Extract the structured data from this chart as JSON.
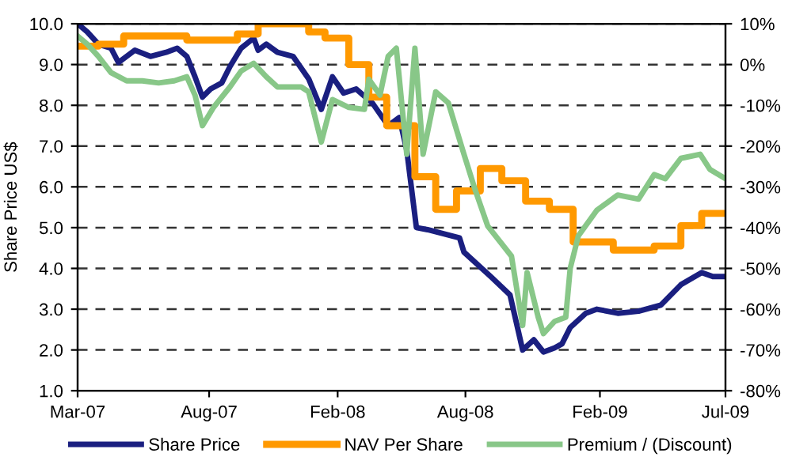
{
  "chart_data": {
    "type": "line",
    "ylabel": "Share Price US$",
    "xlim": [
      "2007-03-01",
      "2009-07-20"
    ],
    "xticks": [
      {
        "value": "2007-03-01",
        "label": "Mar-07"
      },
      {
        "value": "2007-08-25",
        "label": "Aug-07"
      },
      {
        "value": "2008-02-14",
        "label": "Feb-08"
      },
      {
        "value": "2008-08-04",
        "label": "Aug-08"
      },
      {
        "value": "2009-02-01",
        "label": "Feb-09"
      },
      {
        "value": "2009-07-20",
        "label": "Jul-09"
      }
    ],
    "ylim": [
      1,
      10
    ],
    "yticks": [
      {
        "value": 1,
        "label": "1.0"
      },
      {
        "value": 2,
        "label": "2.0"
      },
      {
        "value": 3,
        "label": "3.0"
      },
      {
        "value": 4,
        "label": "4.0"
      },
      {
        "value": 5,
        "label": "5.0"
      },
      {
        "value": 6,
        "label": "6.0"
      },
      {
        "value": 7,
        "label": "7.0"
      },
      {
        "value": 8,
        "label": "8.0"
      },
      {
        "value": 9,
        "label": "9.0"
      },
      {
        "value": 10,
        "label": "10.0"
      }
    ],
    "y2lim": [
      -80,
      10
    ],
    "y2ticks": [
      {
        "value": -80,
        "label": "-80%"
      },
      {
        "value": -70,
        "label": "-70%"
      },
      {
        "value": -60,
        "label": "-60%"
      },
      {
        "value": -50,
        "label": "-50%"
      },
      {
        "value": -40,
        "label": "-40%"
      },
      {
        "value": -30,
        "label": "-30%"
      },
      {
        "value": -20,
        "label": "-20%"
      },
      {
        "value": -10,
        "label": "-10%"
      },
      {
        "value": 0,
        "label": "0%"
      },
      {
        "value": 10,
        "label": "10%"
      }
    ],
    "grid": "y",
    "legend": "bottom",
    "line_style": "solid",
    "series": [
      {
        "name": "Share Price",
        "color": "#1a1f80",
        "x": [
          "2007-03-01",
          "2007-03-14",
          "2007-03-29",
          "2007-04-15",
          "2007-04-25",
          "2007-05-17",
          "2007-06-07",
          "2007-06-28",
          "2007-07-13",
          "2007-07-26",
          "2007-08-06",
          "2007-08-16",
          "2007-08-27",
          "2007-09-11",
          "2007-09-22",
          "2007-10-07",
          "2007-10-24",
          "2007-10-30",
          "2007-11-10",
          "2007-11-25",
          "2007-12-16",
          "2008-01-06",
          "2008-01-23",
          "2008-02-07",
          "2008-02-22",
          "2008-03-10",
          "2008-04-01",
          "2008-04-22",
          "2008-05-07",
          "2008-05-17",
          "2008-05-30",
          "2008-06-14",
          "2008-07-27",
          "2008-08-02",
          "2008-09-07",
          "2008-10-03",
          "2008-10-20",
          "2008-11-04",
          "2008-11-17",
          "2008-12-02",
          "2008-12-12",
          "2008-12-23",
          "2009-01-13",
          "2009-01-28",
          "2009-02-25",
          "2009-03-25",
          "2009-04-24",
          "2009-05-21",
          "2009-06-18",
          "2009-07-03",
          "2009-07-20"
        ],
        "values": [
          10.0,
          9.8,
          9.5,
          9.4,
          9.05,
          9.35,
          9.2,
          9.3,
          9.4,
          9.2,
          8.7,
          8.2,
          8.4,
          8.55,
          8.95,
          9.4,
          9.65,
          9.35,
          9.5,
          9.3,
          9.2,
          8.65,
          7.9,
          8.7,
          8.3,
          8.4,
          8.05,
          7.5,
          7.7,
          6.9,
          5.0,
          4.95,
          4.75,
          4.4,
          3.8,
          3.35,
          2.0,
          2.25,
          1.95,
          2.05,
          2.15,
          2.55,
          2.9,
          3.0,
          2.9,
          2.95,
          3.1,
          3.6,
          3.9,
          3.8,
          3.8
        ]
      },
      {
        "name": "NAV Per Share",
        "color": "#ff9900",
        "type": "step",
        "x": [
          "2007-03-01",
          "2007-03-29",
          "2007-05-02",
          "2007-07-26",
          "2007-08-31",
          "2007-10-02",
          "2007-10-30",
          "2008-01-06",
          "2008-01-28",
          "2008-02-29",
          "2008-03-27",
          "2008-04-20",
          "2008-05-28",
          "2008-06-25",
          "2008-07-23",
          "2008-08-24",
          "2008-09-22",
          "2008-10-24",
          "2008-11-25",
          "2008-12-27",
          "2009-02-19",
          "2009-03-18",
          "2009-04-15",
          "2009-05-21",
          "2009-06-18",
          "2009-07-20"
        ],
        "values": [
          9.45,
          9.5,
          9.7,
          9.6,
          9.6,
          9.75,
          10.0,
          9.8,
          9.65,
          9.0,
          8.2,
          7.5,
          6.25,
          5.45,
          5.9,
          6.45,
          6.15,
          5.65,
          5.45,
          4.65,
          4.45,
          4.45,
          4.55,
          5.05,
          5.35,
          5.35
        ]
      },
      {
        "name": "Premium / (Discount)",
        "color": "#88c788",
        "axis": "y2",
        "x": [
          "2007-03-01",
          "2007-03-14",
          "2007-03-29",
          "2007-04-15",
          "2007-05-06",
          "2007-05-27",
          "2007-06-18",
          "2007-07-09",
          "2007-07-26",
          "2007-08-06",
          "2007-08-16",
          "2007-08-31",
          "2007-09-22",
          "2007-10-07",
          "2007-10-24",
          "2007-11-10",
          "2007-11-25",
          "2007-12-27",
          "2008-01-06",
          "2008-01-23",
          "2008-02-07",
          "2008-02-29",
          "2008-03-21",
          "2008-03-27",
          "2008-04-11",
          "2008-04-22",
          "2008-05-03",
          "2008-05-17",
          "2008-05-28",
          "2008-06-08",
          "2008-06-25",
          "2008-07-12",
          "2008-08-02",
          "2008-08-17",
          "2008-09-03",
          "2008-10-05",
          "2008-10-20",
          "2008-10-26",
          "2008-11-10",
          "2008-11-17",
          "2008-12-02",
          "2008-12-17",
          "2008-12-23",
          "2009-01-03",
          "2009-01-28",
          "2009-02-25",
          "2009-03-25",
          "2009-04-15",
          "2009-04-30",
          "2009-05-21",
          "2009-06-16",
          "2009-06-29",
          "2009-07-20"
        ],
        "values": [
          7,
          5,
          2,
          -2,
          -4,
          -4,
          -4.5,
          -4,
          -3,
          -7.5,
          -15,
          -10.5,
          -5.5,
          -1.6,
          0.3,
          -3,
          -5.5,
          -5.5,
          -6.7,
          -19,
          -8.6,
          -10.5,
          -11,
          -3.6,
          -7.5,
          2,
          4,
          -22,
          4,
          -22,
          -6.7,
          -9.4,
          -22,
          -30.7,
          -39.6,
          -47,
          -64,
          -51,
          -62,
          -66,
          -63,
          -62,
          -50,
          -42,
          -35.7,
          -32,
          -33,
          -27,
          -28,
          -23,
          -22,
          -25.7,
          -28
        ]
      }
    ]
  }
}
